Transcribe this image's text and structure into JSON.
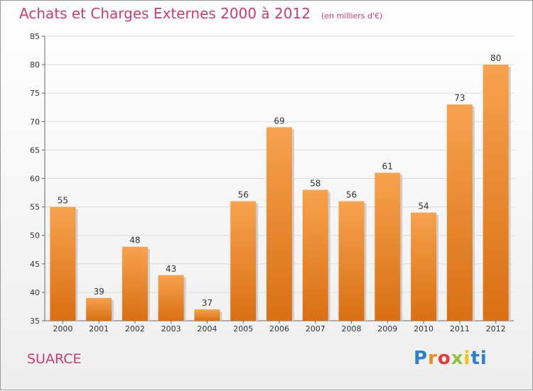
{
  "title": "Achats et Charges Externes 2000 à 2012",
  "subtitle": "(en milliers d'€)",
  "commune": "SUARCE",
  "logo": [
    "P",
    "r",
    "o",
    "x",
    "i",
    "ti"
  ],
  "colors": {
    "bar_top": "#f7a24e",
    "bar_bottom": "#d96f13",
    "title": "#d13b6b"
  },
  "chart_data": {
    "type": "bar",
    "title": "Achats et Charges Externes 2000 à 2012",
    "subtitle": "(en milliers d'€)",
    "xlabel": "",
    "ylabel": "",
    "categories": [
      "2000",
      "2001",
      "2002",
      "2003",
      "2004",
      "2005",
      "2006",
      "2007",
      "2008",
      "2009",
      "2010",
      "2011",
      "2012"
    ],
    "values": [
      55,
      39,
      48,
      43,
      37,
      56,
      69,
      58,
      56,
      61,
      54,
      73,
      80
    ],
    "ylim": [
      35,
      85
    ],
    "yticks": [
      35,
      40,
      45,
      50,
      55,
      60,
      65,
      70,
      75,
      80,
      85
    ],
    "grid": true,
    "legend": "none"
  }
}
